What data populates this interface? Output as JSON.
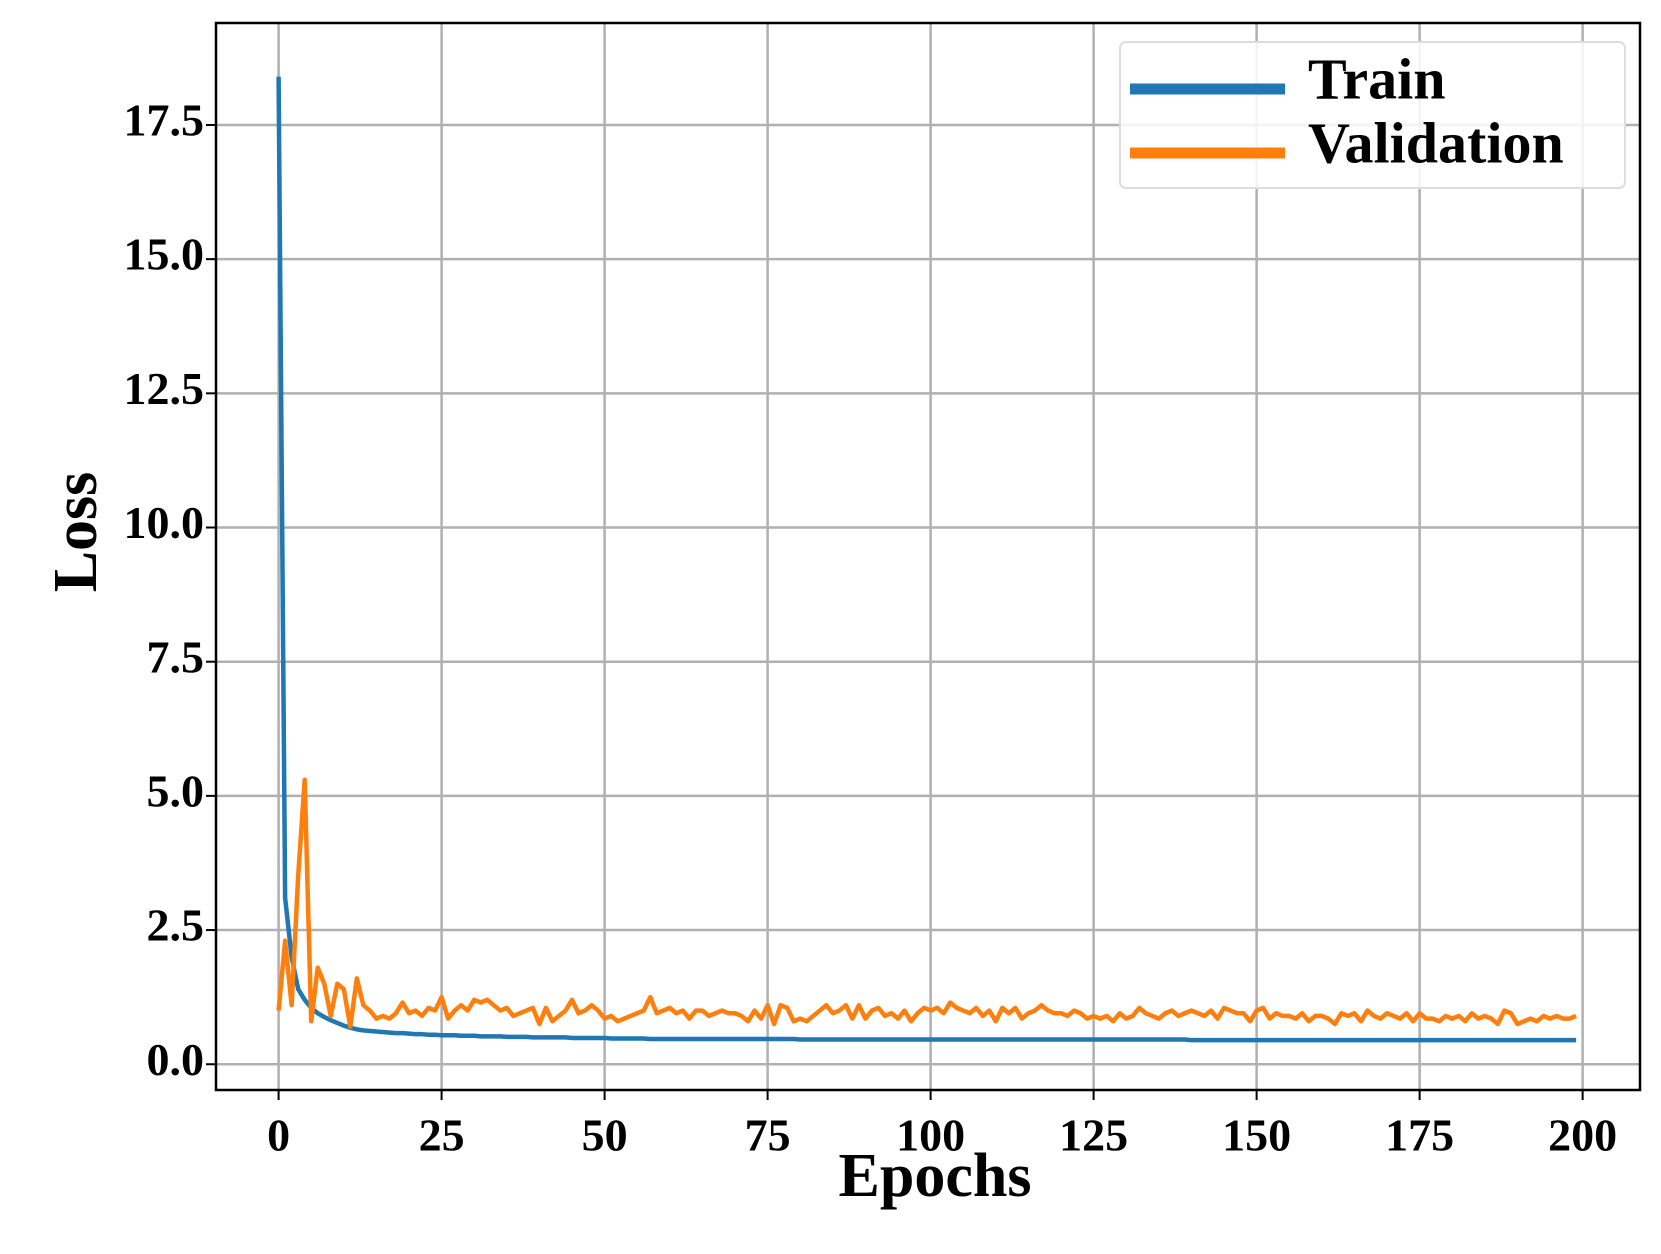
{
  "chart_data": {
    "type": "line",
    "xlabel": "Epochs",
    "ylabel": "Loss",
    "xlim": [
      -9.6,
      208.8
    ],
    "ylim": [
      -0.48,
      19.4
    ],
    "xticks": [
      0,
      25,
      50,
      75,
      100,
      125,
      150,
      175,
      200
    ],
    "yticks": [
      {
        "value": 0,
        "label": "0.0"
      },
      2.5,
      {
        "value": 5,
        "label": "5.0"
      },
      7.5,
      {
        "value": 10,
        "label": "10.0"
      },
      12.5,
      {
        "value": 15,
        "label": "15.0"
      },
      17.5
    ],
    "grid": true,
    "legend": "upper right",
    "x": [
      0,
      1,
      2,
      3,
      4,
      5,
      6,
      7,
      8,
      9,
      10,
      11,
      12,
      13,
      14,
      15,
      16,
      17,
      18,
      19,
      20,
      21,
      22,
      23,
      24,
      25,
      26,
      27,
      28,
      29,
      30,
      31,
      32,
      33,
      34,
      35,
      36,
      37,
      38,
      39,
      40,
      41,
      42,
      43,
      44,
      45,
      46,
      47,
      48,
      49,
      50,
      51,
      52,
      53,
      54,
      55,
      56,
      57,
      58,
      59,
      60,
      61,
      62,
      63,
      64,
      65,
      66,
      67,
      68,
      69,
      70,
      71,
      72,
      73,
      74,
      75,
      76,
      77,
      78,
      79,
      80,
      81,
      82,
      83,
      84,
      85,
      86,
      87,
      88,
      89,
      90,
      91,
      92,
      93,
      94,
      95,
      96,
      97,
      98,
      99,
      100,
      101,
      102,
      103,
      104,
      105,
      106,
      107,
      108,
      109,
      110,
      111,
      112,
      113,
      114,
      115,
      116,
      117,
      118,
      119,
      120,
      121,
      122,
      123,
      124,
      125,
      126,
      127,
      128,
      129,
      130,
      131,
      132,
      133,
      134,
      135,
      136,
      137,
      138,
      139,
      140,
      141,
      142,
      143,
      144,
      145,
      146,
      147,
      148,
      149,
      150,
      151,
      152,
      153,
      154,
      155,
      156,
      157,
      158,
      159,
      160,
      161,
      162,
      163,
      164,
      165,
      166,
      167,
      168,
      169,
      170,
      171,
      172,
      173,
      174,
      175,
      176,
      177,
      178,
      179,
      180,
      181,
      182,
      183,
      184,
      185,
      186,
      187,
      188,
      189,
      190,
      191,
      192,
      193,
      194,
      195,
      196,
      197,
      198,
      199
    ],
    "series": [
      {
        "name": "Train",
        "color": "#1f77b4",
        "values": [
          18.4,
          3.1,
          2.0,
          1.4,
          1.2,
          1.05,
          0.95,
          0.88,
          0.82,
          0.77,
          0.72,
          0.68,
          0.65,
          0.63,
          0.62,
          0.61,
          0.6,
          0.59,
          0.58,
          0.58,
          0.57,
          0.56,
          0.56,
          0.55,
          0.55,
          0.54,
          0.54,
          0.54,
          0.53,
          0.53,
          0.53,
          0.52,
          0.52,
          0.52,
          0.52,
          0.51,
          0.51,
          0.51,
          0.51,
          0.5,
          0.5,
          0.5,
          0.5,
          0.5,
          0.5,
          0.49,
          0.49,
          0.49,
          0.49,
          0.49,
          0.49,
          0.48,
          0.48,
          0.48,
          0.48,
          0.48,
          0.48,
          0.47,
          0.47,
          0.47,
          0.47,
          0.47,
          0.47,
          0.47,
          0.47,
          0.47,
          0.47,
          0.47,
          0.47,
          0.47,
          0.47,
          0.47,
          0.47,
          0.47,
          0.47,
          0.47,
          0.47,
          0.47,
          0.47,
          0.47,
          0.46,
          0.46,
          0.46,
          0.46,
          0.46,
          0.46,
          0.46,
          0.46,
          0.46,
          0.46,
          0.46,
          0.46,
          0.46,
          0.46,
          0.46,
          0.46,
          0.46,
          0.46,
          0.46,
          0.46,
          0.46,
          0.46,
          0.46,
          0.46,
          0.46,
          0.46,
          0.46,
          0.46,
          0.46,
          0.46,
          0.46,
          0.46,
          0.46,
          0.46,
          0.46,
          0.46,
          0.46,
          0.46,
          0.46,
          0.46,
          0.46,
          0.46,
          0.46,
          0.46,
          0.46,
          0.46,
          0.46,
          0.46,
          0.46,
          0.46,
          0.46,
          0.46,
          0.46,
          0.46,
          0.46,
          0.46,
          0.46,
          0.46,
          0.46,
          0.46,
          0.45,
          0.45,
          0.45,
          0.45,
          0.45,
          0.45,
          0.45,
          0.45,
          0.45,
          0.45,
          0.45,
          0.45,
          0.45,
          0.45,
          0.45,
          0.45,
          0.45,
          0.45,
          0.45,
          0.45,
          0.45,
          0.45,
          0.45,
          0.45,
          0.45,
          0.45,
          0.45,
          0.45,
          0.45,
          0.45,
          0.45,
          0.45,
          0.45,
          0.45,
          0.45,
          0.45,
          0.45,
          0.45,
          0.45,
          0.45,
          0.45,
          0.45,
          0.45,
          0.45,
          0.45,
          0.45,
          0.45,
          0.45,
          0.45,
          0.45,
          0.45,
          0.45,
          0.45,
          0.45,
          0.45,
          0.45,
          0.45,
          0.45,
          0.45,
          0.45
        ]
      },
      {
        "name": "Validation",
        "color": "#ff7f0e",
        "values": [
          1.0,
          2.3,
          1.1,
          3.5,
          5.3,
          0.8,
          1.8,
          1.5,
          0.9,
          1.5,
          1.4,
          0.7,
          1.6,
          1.1,
          1.0,
          0.85,
          0.9,
          0.85,
          0.95,
          1.15,
          0.95,
          1.0,
          0.9,
          1.05,
          1.0,
          1.25,
          0.85,
          1.0,
          1.1,
          1.0,
          1.2,
          1.15,
          1.2,
          1.1,
          1.0,
          1.05,
          0.9,
          0.95,
          1.0,
          1.05,
          0.75,
          1.05,
          0.8,
          0.9,
          1.0,
          1.2,
          0.95,
          1.0,
          1.1,
          1.0,
          0.85,
          0.9,
          0.8,
          0.85,
          0.9,
          0.95,
          1.0,
          1.25,
          0.95,
          1.0,
          1.05,
          0.95,
          1.0,
          0.85,
          1.0,
          1.0,
          0.9,
          0.95,
          1.0,
          0.95,
          0.95,
          0.9,
          0.8,
          1.0,
          0.85,
          1.1,
          0.75,
          1.1,
          1.05,
          0.8,
          0.85,
          0.8,
          0.9,
          1.0,
          1.1,
          0.95,
          1.0,
          1.1,
          0.85,
          1.1,
          0.85,
          1.0,
          1.05,
          0.9,
          0.95,
          0.85,
          1.0,
          0.8,
          0.95,
          1.05,
          1.0,
          1.05,
          0.95,
          1.15,
          1.05,
          1.0,
          0.95,
          1.05,
          0.9,
          1.0,
          0.8,
          1.05,
          0.95,
          1.05,
          0.85,
          0.95,
          1.0,
          1.1,
          1.0,
          0.95,
          0.95,
          0.9,
          1.0,
          0.95,
          0.85,
          0.9,
          0.85,
          0.9,
          0.8,
          0.95,
          0.85,
          0.9,
          1.05,
          0.95,
          0.9,
          0.85,
          0.95,
          1.0,
          0.9,
          0.95,
          1.0,
          0.95,
          0.9,
          1.0,
          0.85,
          1.05,
          1.0,
          0.95,
          0.95,
          0.8,
          1.0,
          1.05,
          0.85,
          0.95,
          0.9,
          0.9,
          0.85,
          0.95,
          0.8,
          0.9,
          0.9,
          0.85,
          0.75,
          0.95,
          0.9,
          0.95,
          0.8,
          1.0,
          0.9,
          0.85,
          0.95,
          0.9,
          0.85,
          0.95,
          0.8,
          0.95,
          0.85,
          0.85,
          0.8,
          0.9,
          0.85,
          0.9,
          0.8,
          0.95,
          0.85,
          0.9,
          0.85,
          0.75,
          1.0,
          0.95,
          0.75,
          0.8,
          0.85,
          0.8,
          0.9,
          0.85,
          0.9,
          0.85,
          0.85,
          0.9
        ]
      }
    ]
  }
}
